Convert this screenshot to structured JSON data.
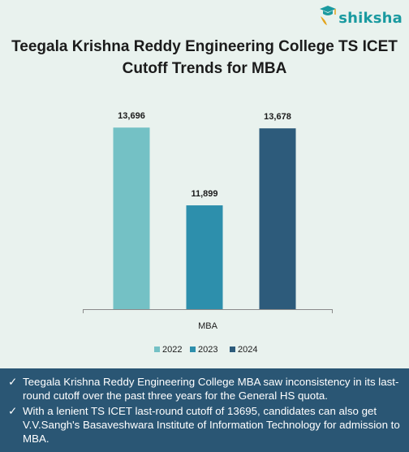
{
  "brand": {
    "name": "shiksha"
  },
  "title_lines": [
    "Teegala Krishna Reddy Engineering College TS ICET",
    "Cutoff Trends for MBA"
  ],
  "chart_data": {
    "type": "bar",
    "categories": [
      "MBA"
    ],
    "series": [
      {
        "name": "2022",
        "values": [
          13696
        ],
        "label": "13,696",
        "color": "#74c1c5"
      },
      {
        "name": "2023",
        "values": [
          11899
        ],
        "label": "11,899",
        "color": "#2d8fac"
      },
      {
        "name": "2024",
        "values": [
          13678
        ],
        "label": "13,678",
        "color": "#2d5b7b"
      }
    ],
    "ylim": [
      9500,
      13850
    ],
    "legend_position": "bottom",
    "grid": false
  },
  "notes": [
    "Teegala Krishna Reddy Engineering College MBA saw inconsistency in its last-round cutoff over the past three years for the General HS quota.",
    "With a lenient TS ICET last-round cutoff of 13695, candidates can also get V.V.Sangh's Basaveshwara Institute of Information Technology for admission to MBA."
  ],
  "check_glyph": "✓"
}
